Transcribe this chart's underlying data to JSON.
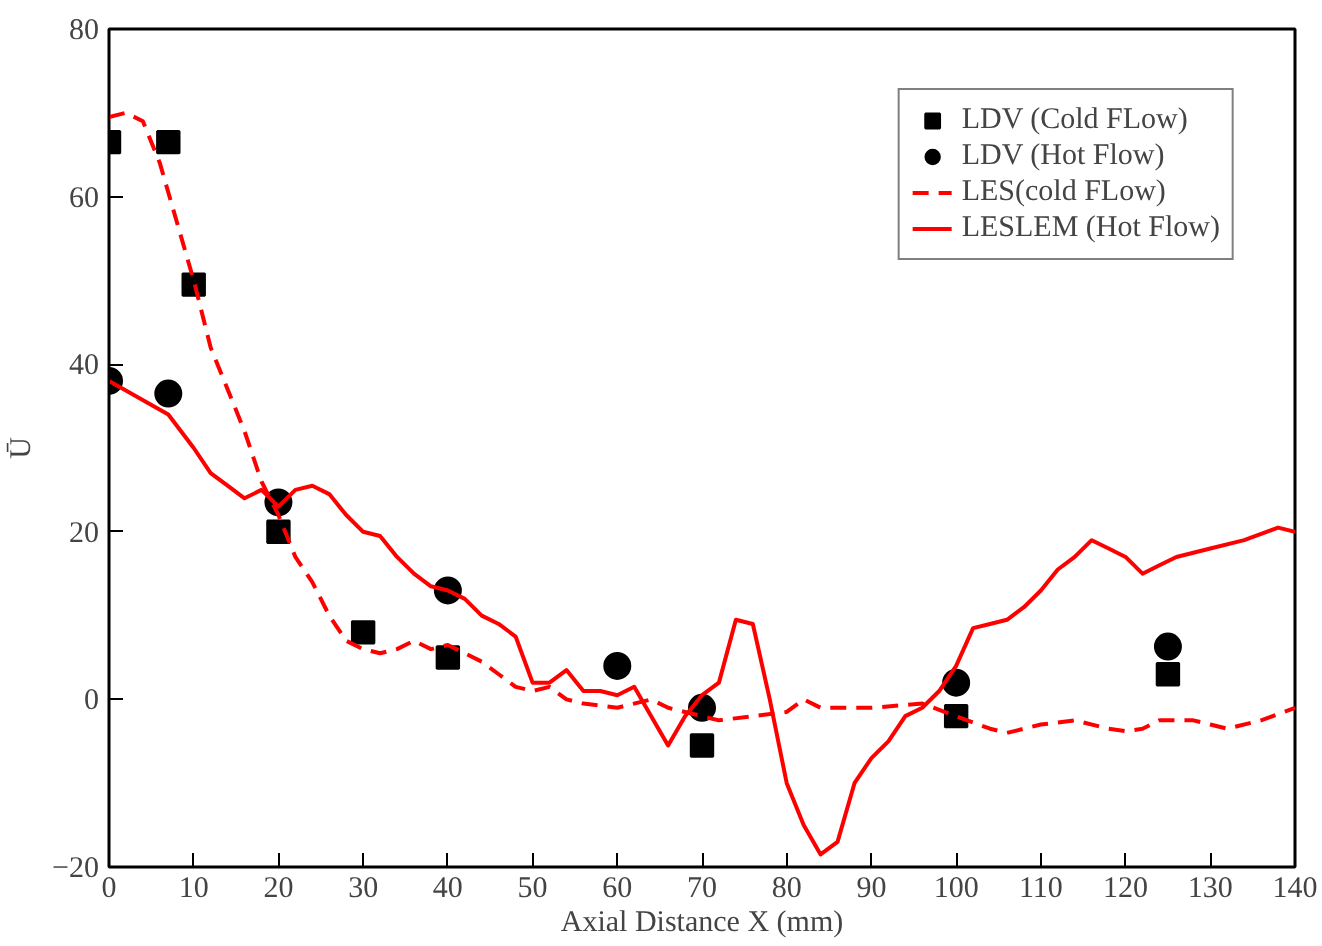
{
  "chart_data": {
    "type": "line",
    "xlabel": "Axial Distance X (mm)",
    "ylabel": "Ū",
    "xlim": [
      0,
      140
    ],
    "ylim": [
      -20,
      80
    ],
    "xticks": [
      0,
      10,
      20,
      30,
      40,
      50,
      60,
      70,
      80,
      90,
      100,
      110,
      120,
      130,
      140
    ],
    "yticks": [
      -20,
      0,
      20,
      40,
      60,
      80
    ],
    "grid": false,
    "legend": "top right",
    "series": [
      {
        "name": "LDV (Cold FLow)",
        "type": "scatter",
        "marker": "square",
        "color": "#000000",
        "x": [
          0,
          7,
          10,
          20,
          30,
          40,
          70,
          100,
          125
        ],
        "values": [
          66.5,
          66.5,
          49.5,
          20,
          8,
          5,
          -5.5,
          -2,
          3
        ]
      },
      {
        "name": "LDV (Hot Flow)",
        "type": "scatter",
        "marker": "circle",
        "color": "#000000",
        "x": [
          0,
          7,
          20,
          40,
          60,
          70,
          100,
          125
        ],
        "values": [
          38,
          36.5,
          23.5,
          13,
          4,
          -1,
          2,
          6.3
        ]
      },
      {
        "name": "LES(cold FLow)",
        "line_style": "dashed",
        "color": "#ff0000",
        "x": [
          0,
          2,
          4,
          6,
          8,
          10,
          12,
          14,
          16,
          18,
          20,
          22,
          24,
          26,
          28,
          30,
          32,
          34,
          36,
          38,
          40,
          42,
          44,
          46,
          48,
          50,
          52,
          54,
          56,
          60,
          64,
          66,
          68,
          70,
          72,
          76,
          80,
          82,
          84,
          90,
          96,
          100,
          104,
          106,
          110,
          114,
          118,
          120,
          122,
          124,
          128,
          130,
          132,
          136,
          140
        ],
        "values": [
          69.5,
          70,
          69,
          64,
          57,
          50,
          42,
          37,
          32,
          26,
          22,
          17,
          14,
          10,
          7,
          6,
          5.5,
          6,
          7,
          6,
          6.5,
          5.5,
          4.5,
          3,
          1.5,
          1,
          1.5,
          0,
          -0.5,
          -1,
          0,
          -1,
          -1.5,
          -2,
          -2.5,
          -2,
          -1.5,
          0,
          -1,
          -1,
          -0.5,
          -2,
          -3.5,
          -4,
          -3,
          -2.5,
          -3.5,
          -3.8,
          -3.5,
          -2.5,
          -2.5,
          -3,
          -3.5,
          -2.5,
          -1
        ]
      },
      {
        "name": "LESLEM (Hot Flow)",
        "line_style": "solid",
        "color": "#ff0000",
        "x": [
          0,
          7,
          10,
          12,
          14,
          16,
          18,
          20,
          22,
          24,
          26,
          28,
          30,
          32,
          34,
          36,
          38,
          40,
          42,
          44,
          46,
          48,
          50,
          52,
          54,
          56,
          58,
          60,
          62,
          64,
          66,
          68,
          70,
          72,
          74,
          76,
          78,
          80,
          82,
          84,
          86,
          88,
          90,
          92,
          94,
          96,
          98,
          100,
          102,
          104,
          106,
          108,
          110,
          112,
          114,
          116,
          118,
          120,
          122,
          124,
          126,
          130,
          134,
          138,
          140
        ],
        "values": [
          38,
          34,
          30,
          27,
          25.5,
          24,
          25,
          23,
          25,
          25.5,
          24.5,
          22,
          20,
          19.5,
          17,
          15,
          13.5,
          13,
          12,
          10,
          9,
          7.5,
          2,
          2,
          3.5,
          1,
          1,
          0.5,
          1.5,
          -2,
          -5.5,
          -2,
          0.5,
          2,
          9.5,
          9,
          0,
          -10,
          -15,
          -18.5,
          -17,
          -10,
          -7,
          -5,
          -2,
          -1,
          1,
          4,
          8.5,
          9,
          9.5,
          11,
          13,
          15.5,
          17,
          19,
          18,
          17,
          15,
          16,
          17,
          18,
          19,
          20.5,
          20
        ]
      }
    ]
  }
}
